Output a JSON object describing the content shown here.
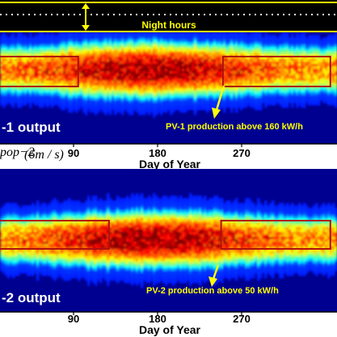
{
  "chart_data": [
    {
      "type": "heatmap",
      "panel": "top",
      "night_label": "Night hours",
      "output_label": "-1 output",
      "annotation": "PV-1 production above 160 kW/h",
      "x_ticks": [
        90,
        180,
        270
      ],
      "xlabel": "Day of Year",
      "xlim": [
        1,
        365
      ],
      "highlight_ranges_days": [
        [
          10,
          95
        ],
        [
          250,
          365
        ]
      ]
    },
    {
      "type": "heatmap",
      "panel": "bottom",
      "output_label": "-2 output",
      "annotation": "PV-2 production above 50 kW/h",
      "x_ticks": [
        90,
        180,
        270
      ],
      "xlabel": "Day of Year",
      "xlim": [
        1,
        365
      ],
      "highlight_ranges_days": [
        [
          10,
          128
        ],
        [
          248,
          365
        ]
      ]
    }
  ],
  "formula_fragment": "pop−2",
  "formula_main": "(6m / s)",
  "colors": {
    "background": "#000090",
    "night_band": "#000000",
    "night_band_border": "#ffff00",
    "annotation_text": "#ffff00",
    "highlight_box": "#b01010",
    "arrow": "#ffff00"
  },
  "icons": [
    "double-arrow-icon",
    "annotation-arrow-icon"
  ]
}
